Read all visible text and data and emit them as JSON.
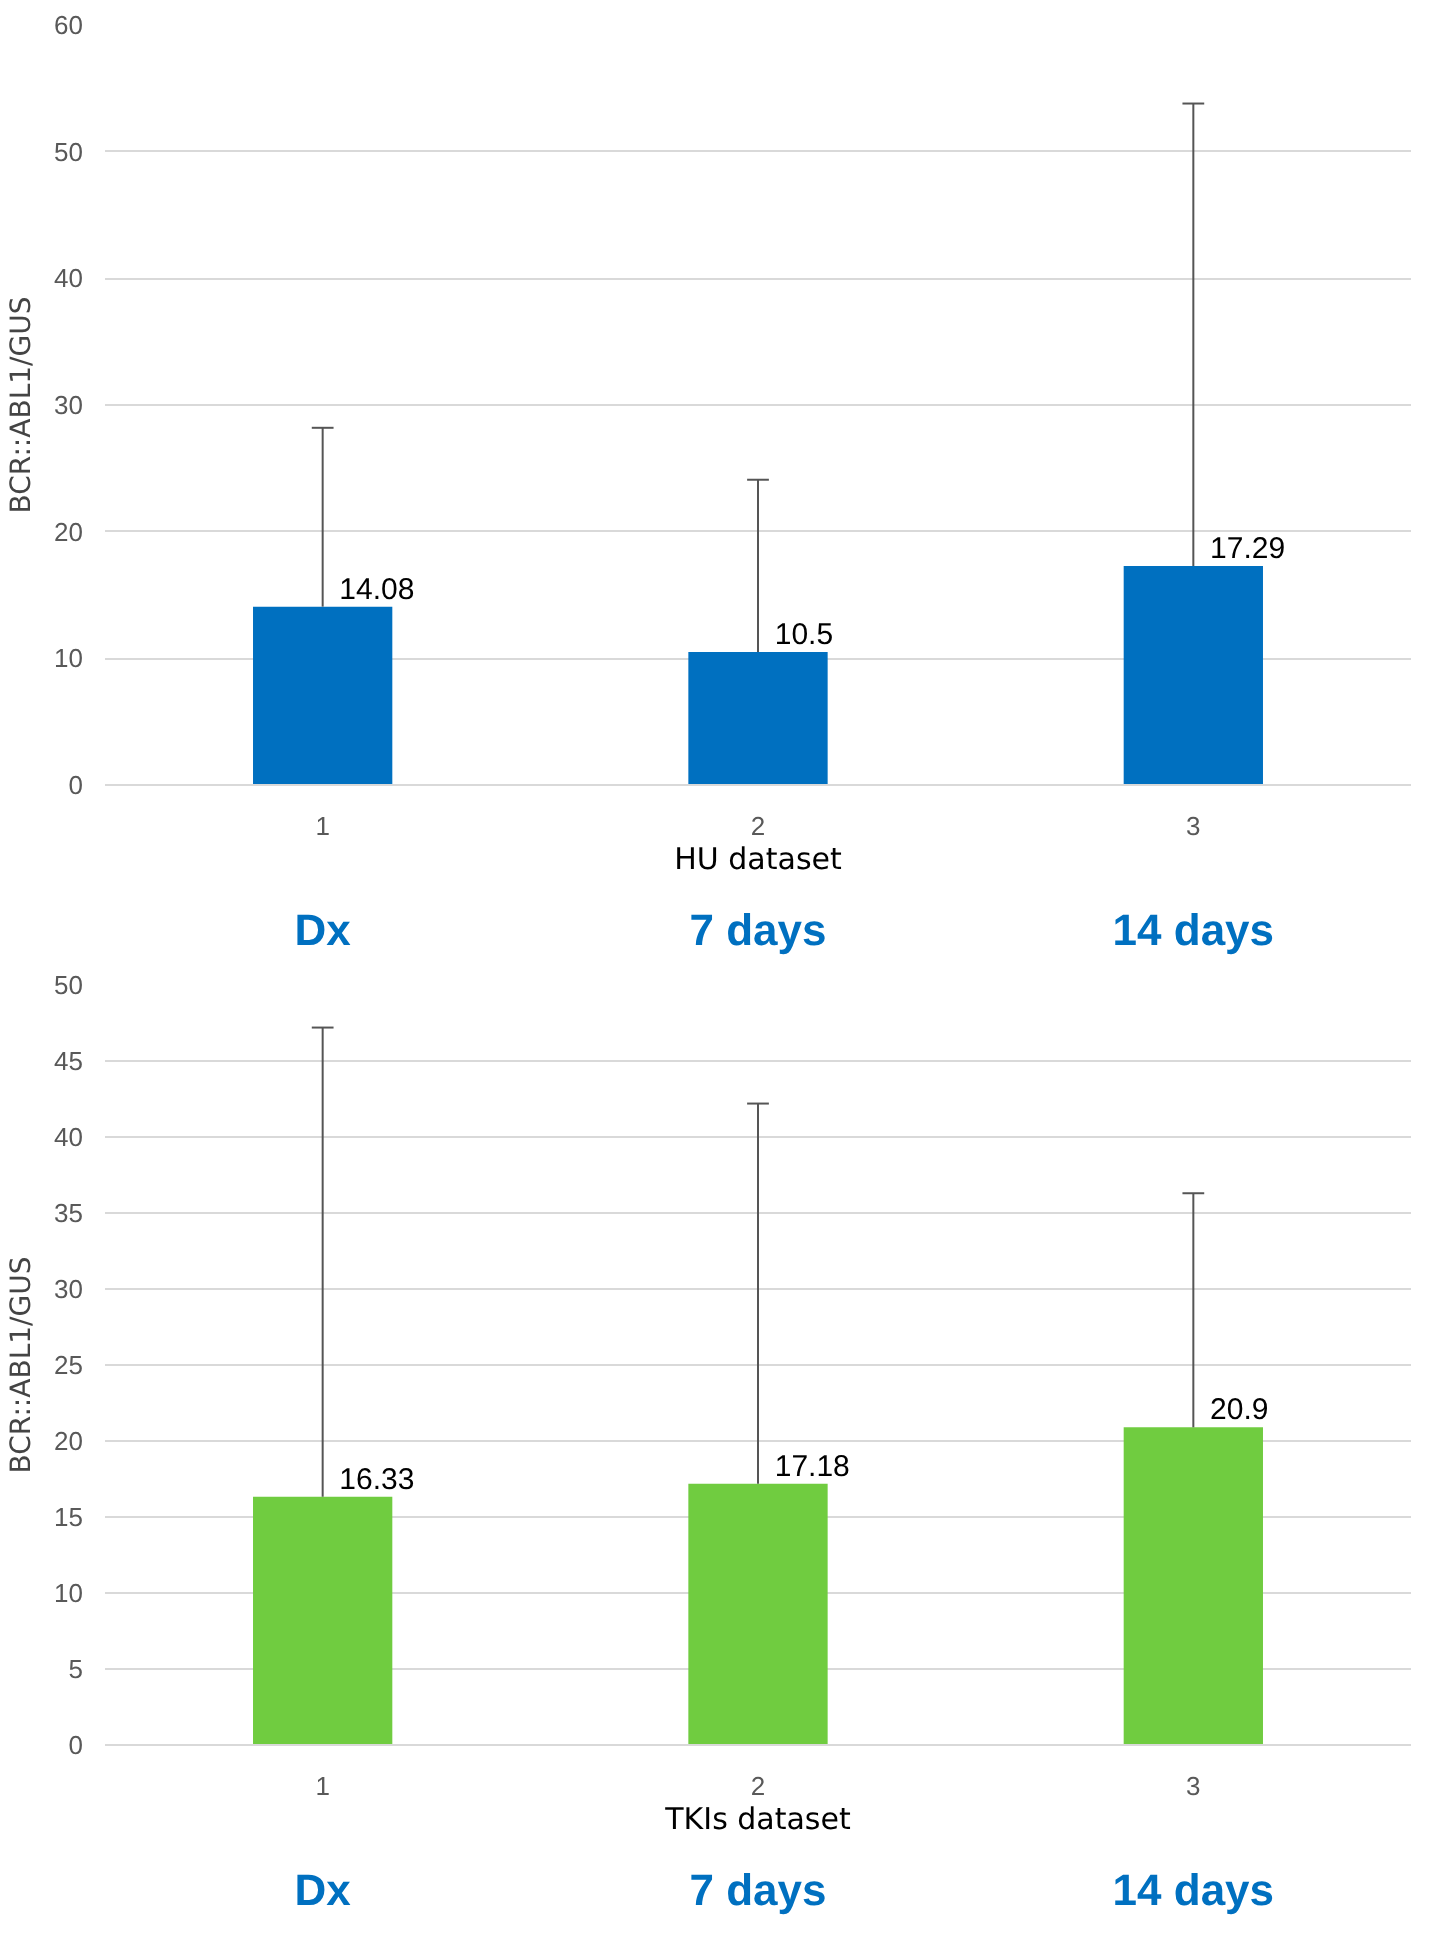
{
  "chart_data": [
    {
      "type": "bar",
      "ylabel": "BCR::ABL1/GUS",
      "xlabel": "HU dataset",
      "categories": [
        "1",
        "2",
        "3"
      ],
      "values": [
        14.08,
        10.5,
        17.29
      ],
      "color": "#0070c0",
      "errors": [
        [
          14.08,
          28.2
        ],
        [
          10.5,
          24.1
        ],
        [
          17.29,
          53.8
        ]
      ],
      "data_labels": true,
      "ylim": [
        0,
        60
      ],
      "yticks": [
        0,
        10,
        20,
        30,
        40,
        50,
        60
      ],
      "grid": "y",
      "annotations": [
        "Dx",
        "7 days",
        "14 days"
      ]
    },
    {
      "type": "bar",
      "ylabel": "BCR::ABL1/GUS",
      "xlabel": "TKIs dataset",
      "categories": [
        "1",
        "2",
        "3"
      ],
      "values": [
        16.33,
        17.18,
        20.9
      ],
      "color": "#70cc40",
      "errors": [
        [
          16.33,
          47.2
        ],
        [
          17.18,
          42.2
        ],
        [
          20.9,
          36.3
        ]
      ],
      "data_labels": true,
      "ylim": [
        0,
        50
      ],
      "yticks": [
        0,
        5,
        10,
        15,
        20,
        25,
        30,
        35,
        40,
        45,
        50
      ],
      "grid": "y",
      "annotations": [
        "Dx",
        "7 days",
        "14 days"
      ]
    }
  ]
}
